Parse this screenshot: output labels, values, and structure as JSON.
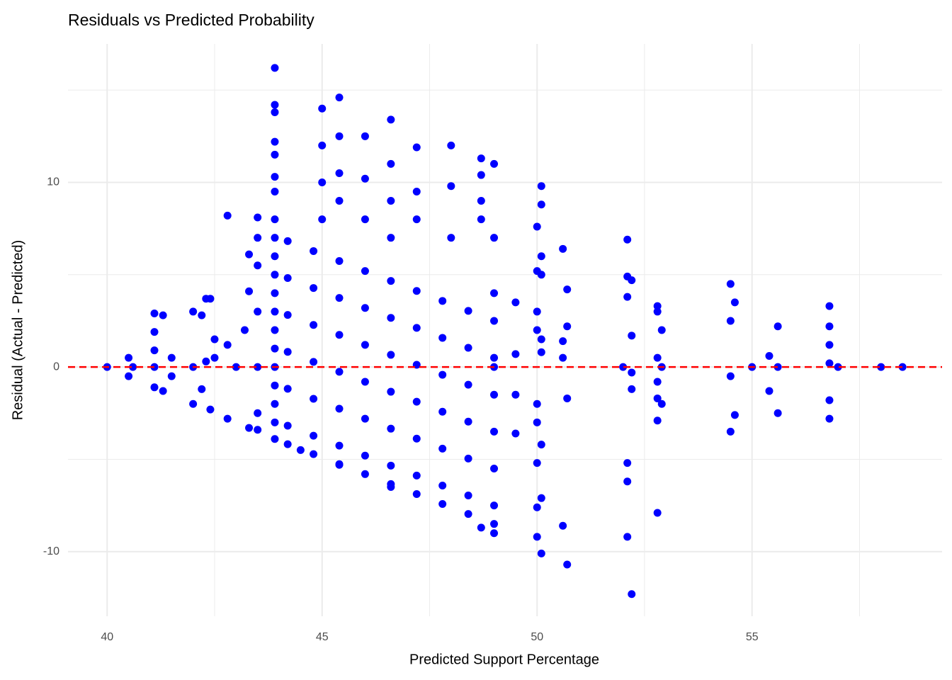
{
  "chart_data": {
    "type": "scatter",
    "title": "Residuals vs Predicted Probability",
    "x_label": "Predicted Support Percentage",
    "y_label": "Residual (Actual - Predicted)",
    "color": "#0000ff",
    "xlim": [
      39.09,
      59.42
    ],
    "ylim": [
      -13.5,
      17.5
    ],
    "xticks": [
      40,
      45,
      50,
      55
    ],
    "yticks": [
      -10,
      0,
      10
    ],
    "x_minor_grid": [
      42.5,
      47.5,
      52.5,
      57.5
    ],
    "y_minor_grid": [
      -5,
      5,
      15
    ],
    "grid": true,
    "hline": {
      "value": 0,
      "color": "#ff0000",
      "dashed": true
    },
    "x": [
      40.0,
      40.5,
      40.5,
      40.6,
      41.1,
      41.1,
      41.1,
      41.1,
      41.1,
      41.3,
      41.3,
      41.5,
      41.5,
      42.0,
      42.0,
      42.0,
      42.2,
      42.2,
      42.3,
      42.3,
      42.4,
      42.4,
      42.5,
      42.5,
      42.8,
      42.8,
      42.8,
      43.0,
      43.2,
      43.3,
      43.3,
      43.3,
      43.5,
      43.5,
      43.5,
      43.5,
      43.5,
      43.5,
      43.5,
      43.9,
      43.9,
      43.9,
      43.9,
      43.9,
      43.9,
      43.9,
      43.9,
      43.9,
      43.9,
      43.9,
      43.9,
      43.9,
      43.9,
      43.9,
      43.9,
      43.9,
      43.9,
      43.9,
      43.9,
      44.2,
      44.8,
      45.4,
      46.0,
      46.6,
      47.2,
      47.8,
      48.4,
      49.0,
      44.2,
      44.8,
      45.4,
      46.0,
      46.6,
      47.2,
      47.8,
      48.4,
      49.0,
      44.2,
      44.8,
      45.4,
      46.0,
      46.6,
      47.2,
      47.8,
      48.4,
      49.0,
      44.2,
      44.8,
      45.4,
      46.0,
      46.6,
      47.2,
      47.8,
      48.4,
      49.0,
      44.2,
      44.8,
      45.4,
      46.0,
      46.6,
      47.2,
      47.8,
      48.4,
      49.0,
      44.2,
      44.8,
      45.4,
      46.0,
      46.6,
      47.2,
      47.8,
      48.4,
      49.0,
      44.2,
      44.8,
      45.4,
      46.0,
      46.6,
      47.2,
      47.8,
      48.4,
      49.0,
      45.0,
      45.0,
      45.0,
      45.0,
      45.4,
      45.4,
      45.4,
      45.4,
      45.4,
      44.5,
      46.0,
      46.0,
      46.0,
      46.6,
      46.6,
      46.6,
      46.6,
      46.6,
      47.2,
      47.2,
      47.2,
      48.0,
      48.0,
      48.0,
      48.7,
      48.7,
      48.7,
      48.7,
      48.7,
      49.0,
      49.0,
      49.0,
      49.0,
      49.0,
      49.5,
      49.5,
      49.5,
      49.5,
      50.0,
      50.0,
      50.0,
      50.0,
      50.0,
      50.0,
      50.0,
      50.0,
      50.0,
      50.1,
      50.1,
      50.1,
      50.1,
      50.1,
      50.1,
      50.1,
      50.1,
      50.1,
      50.6,
      50.6,
      50.6,
      50.6,
      50.7,
      50.7,
      50.7,
      50.7,
      52.0,
      52.1,
      52.1,
      52.1,
      52.1,
      52.1,
      52.1,
      52.2,
      52.2,
      52.2,
      52.2,
      52.2,
      52.8,
      52.8,
      52.8,
      52.8,
      52.8,
      52.8,
      52.8,
      52.9,
      52.9,
      52.9,
      54.5,
      54.5,
      54.5,
      54.5,
      54.6,
      54.6,
      55.0,
      55.4,
      55.4,
      55.6,
      55.6,
      55.6,
      56.8,
      56.8,
      56.8,
      56.8,
      56.8,
      56.8,
      57.0,
      58.0,
      58.5
    ],
    "values": [
      0,
      0.5,
      -0.5,
      0,
      2.9,
      1.9,
      0.9,
      0,
      -1.1,
      2.8,
      -1.3,
      0.5,
      -0.5,
      3.0,
      0,
      -2.0,
      2.8,
      -1.2,
      3.7,
      0.3,
      3.7,
      -2.3,
      1.5,
      0.5,
      8.2,
      1.2,
      -2.8,
      0,
      2,
      6.1,
      4.1,
      -3.3,
      8.1,
      7.0,
      5.5,
      3.0,
      0,
      -2.5,
      -3.4,
      16.2,
      14.2,
      13.8,
      12.2,
      11.5,
      10.3,
      9.5,
      8,
      7,
      6,
      5,
      4,
      3,
      2,
      1,
      0,
      -1,
      -2,
      -3,
      -3.9,
      6.82,
      6.28,
      5.74,
      5.2,
      4.66,
      4.12,
      3.58,
      3.04,
      2.5,
      4.82,
      4.28,
      3.74,
      3.2,
      2.66,
      2.12,
      1.58,
      1.04,
      0.5,
      2.82,
      2.28,
      1.74,
      1.2,
      0.66,
      0.12,
      -0.42,
      -0.96,
      -1.5,
      0.82,
      0.28,
      -0.26,
      -0.8,
      -1.34,
      -1.88,
      -2.42,
      -2.96,
      -3.5,
      -1.18,
      -1.72,
      -2.26,
      -2.8,
      -3.34,
      -3.88,
      -4.42,
      -4.96,
      -5.5,
      -3.18,
      -3.72,
      -4.26,
      -4.8,
      -5.34,
      -5.88,
      -6.42,
      -6.96,
      -7.5,
      -4.18,
      -4.72,
      -5.26,
      -5.8,
      -6.34,
      -6.88,
      -7.42,
      -7.96,
      -8.5,
      14,
      12,
      10,
      8,
      14.6,
      12.5,
      10.5,
      9,
      -5.3,
      -4.5,
      12.5,
      10.2,
      8,
      13.4,
      11,
      9,
      7,
      -6.5,
      11.9,
      9.5,
      8,
      12,
      9.8,
      7,
      11.3,
      10.4,
      9,
      8,
      -8.7,
      11,
      7,
      4,
      0,
      -9,
      3.5,
      0.7,
      -1.5,
      -3.6,
      7.6,
      5.2,
      3,
      2,
      -2,
      -3,
      -5.2,
      -7.6,
      -9.2,
      9.8,
      8.8,
      6,
      5,
      1.5,
      0.8,
      -4.2,
      -7.1,
      -10.1,
      6.4,
      1.4,
      0.5,
      -8.6,
      4.2,
      2.2,
      -1.7,
      -10.7,
      0,
      6.9,
      4.9,
      3.8,
      -5.2,
      -6.2,
      -9.2,
      4.7,
      1.7,
      -0.3,
      -1.2,
      -12.3,
      3.3,
      3,
      0.5,
      -0.8,
      -1.7,
      -2.9,
      -7.9,
      2,
      0,
      -2,
      4.5,
      2.5,
      -0.5,
      -3.5,
      3.5,
      -2.6,
      0,
      0.6,
      -1.3,
      2.2,
      -2.5,
      0,
      3.3,
      2.2,
      1.2,
      0.2,
      -1.8,
      -2.8,
      0,
      0,
      0
    ]
  }
}
